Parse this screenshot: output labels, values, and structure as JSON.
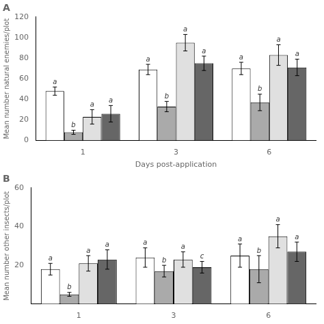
{
  "chart_data": [
    {
      "type": "bar",
      "title": "A",
      "xlabel": "Days post-application",
      "ylabel": "Mean number natural enemies/plot",
      "categories": [
        "1",
        "3",
        "6"
      ],
      "series": [
        {
          "color": "white",
          "values": [
            48,
            69,
            70
          ],
          "errors": [
            4,
            5,
            6
          ],
          "letters": [
            "a",
            "a",
            "a"
          ]
        },
        {
          "color": "#aaaaaa",
          "values": [
            8,
            33,
            37
          ],
          "errors": [
            2,
            5,
            8
          ],
          "letters": [
            "b",
            "b",
            "b"
          ]
        },
        {
          "color": "#e0e0e0",
          "values": [
            23,
            95,
            83
          ],
          "errors": [
            7,
            8,
            10
          ],
          "letters": [
            "a",
            "a",
            "a"
          ]
        },
        {
          "color": "#666666",
          "values": [
            26,
            75,
            71
          ],
          "errors": [
            8,
            7,
            8
          ],
          "letters": [
            "a",
            "a",
            "a"
          ]
        }
      ],
      "ylim": [
        0,
        120
      ],
      "yticks": [
        0,
        20,
        40,
        60,
        80,
        100,
        120
      ],
      "grid": false
    },
    {
      "type": "bar",
      "title": "B",
      "ylabel": "Mean number other insects/plot",
      "categories": [
        "1",
        "3",
        "6"
      ],
      "series": [
        {
          "color": "white",
          "values": [
            18,
            24,
            25
          ],
          "errors": [
            3,
            5,
            6
          ],
          "letters": [
            "a",
            "a",
            "a"
          ]
        },
        {
          "color": "#aaaaaa",
          "values": [
            5,
            17,
            18
          ],
          "errors": [
            1,
            3,
            7
          ],
          "letters": [
            "b",
            "b",
            "b"
          ]
        },
        {
          "color": "#e0e0e0",
          "values": [
            21,
            23,
            35
          ],
          "errors": [
            4,
            4,
            6
          ],
          "letters": [
            "a",
            "a",
            "a"
          ]
        },
        {
          "color": "#666666",
          "values": [
            23,
            19,
            27
          ],
          "errors": [
            5,
            3,
            5
          ],
          "letters": [
            "a",
            "c",
            "a"
          ]
        }
      ],
      "ylim": [
        0,
        60
      ],
      "yticks": [
        20,
        40,
        60
      ],
      "grid": false
    }
  ]
}
